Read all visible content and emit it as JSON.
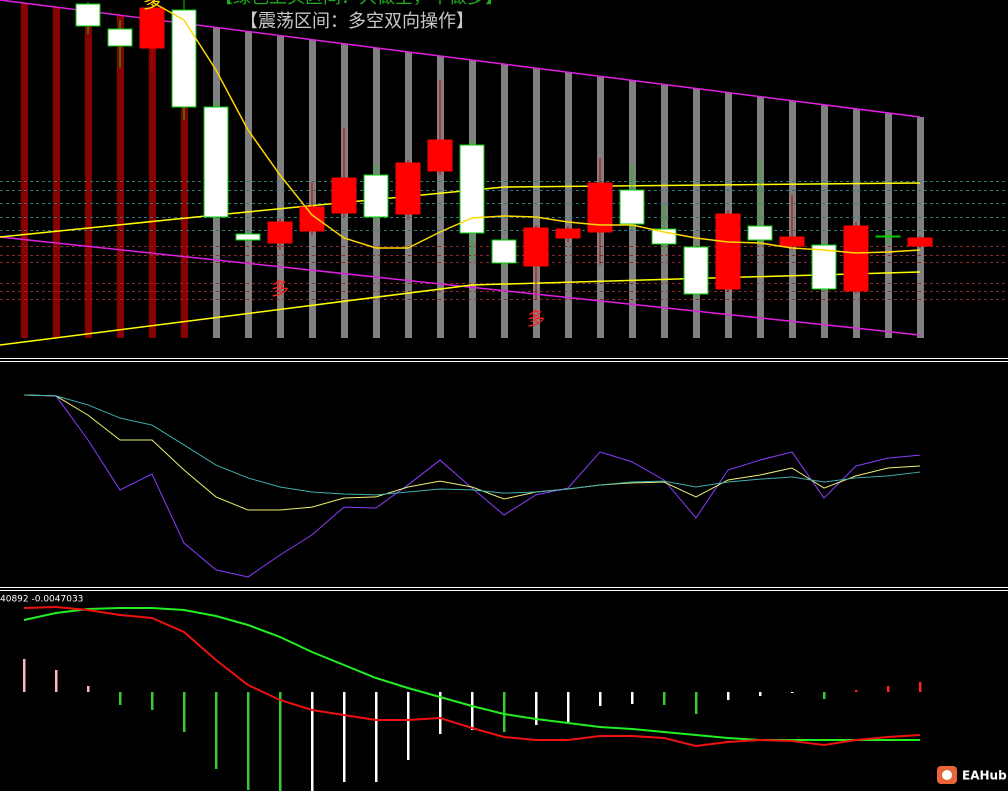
{
  "chart_data": [
    {
      "type": "candlestick",
      "title": "【绿色上头区间：只做空，不做多】",
      "subtitle": "【震荡区间：多空双向操作】",
      "annotations": [
        "多",
        "多",
        "多"
      ],
      "ylim": [
        0,
        360
      ],
      "up_color": "#ffffff",
      "down_color": "#ff0000",
      "wick_color": "#00cc00",
      "open": [
        null,
        null,
        334,
        314,
        352,
        253,
        143,
        120,
        138,
        153,
        182,
        143,
        197,
        220,
        127,
        97,
        132,
        131,
        177,
        136,
        116,
        66,
        146,
        120,
        123,
        71,
        134,
        123,
        122
      ],
      "high": [
        null,
        null,
        358,
        340,
        360,
        360,
        258,
        128,
        142,
        178,
        232,
        196,
        200,
        280,
        220,
        122,
        135,
        134,
        202,
        195,
        155,
        116,
        150,
        200,
        165,
        118,
        138,
        130,
        124
      ],
      "low": [
        null,
        null,
        326,
        292,
        290,
        240,
        140,
        118,
        110,
        125,
        143,
        138,
        140,
        185,
        100,
        92,
        60,
        118,
        95,
        130,
        110,
        62,
        68,
        115,
        110,
        68,
        66,
        116,
        112
      ],
      "close": [
        null,
        null,
        356,
        331,
        312,
        350,
        253,
        126,
        117,
        129,
        147,
        185,
        146,
        189,
        215,
        120,
        94,
        122,
        128,
        170,
        131,
        113,
        71,
        134,
        114,
        115,
        69,
        124,
        114
      ],
      "overlays": [
        {
          "color": "#ffd700",
          "values": [
            null,
            null,
            null,
            null,
            358,
            340,
            290,
            230,
            185,
            145,
            122,
            112,
            112,
            128,
            142,
            144,
            143,
            138,
            135,
            135,
            128,
            122,
            118,
            117,
            112,
            110,
            107,
            108,
            110
          ]
        }
      ],
      "channels": [
        {
          "color": "#e020e0",
          "x": [
            -0.75,
            28
          ],
          "values": [
            360,
            243
          ]
        },
        {
          "color": "#e020e0",
          "x": [
            -0.75,
            28
          ],
          "values": [
            123,
            25
          ]
        },
        {
          "color": "#ffff00",
          "x": [
            -0.75,
            14,
            28
          ],
          "values": [
            15,
            75,
            88
          ]
        },
        {
          "color": "#ffff00",
          "x": [
            -0.75,
            6,
            15,
            28
          ],
          "values": [
            123,
            145,
            173,
            177
          ]
        }
      ]
    },
    {
      "type": "line",
      "ylim": [
        0,
        100
      ],
      "series": [
        {
          "color": "#8a3cff",
          "values": [
            85.4,
            85,
            65.5,
            43.4,
            50.4,
            19.9,
            8,
            4.9,
            14.6,
            23.5,
            35.8,
            35.4,
            45.6,
            56.6,
            44.2,
            32.3,
            41.2,
            44.2,
            60.2,
            55.8,
            47.8,
            31,
            52.2,
            56.6,
            60.2,
            39.8,
            54,
            57.5,
            58.8
          ]
        },
        {
          "color": "#f0f070",
          "values": [
            85.4,
            85,
            76.5,
            65.5,
            65.5,
            52.2,
            40.3,
            34.5,
            34.5,
            35.8,
            39.8,
            40.3,
            44.7,
            47.3,
            44.7,
            39.4,
            42.5,
            43.8,
            45.6,
            46.5,
            46.9,
            40.3,
            47.8,
            50,
            53.1,
            44.2,
            49.6,
            53.1,
            54
          ]
        },
        {
          "color": "#40b0b0",
          "values": [
            85.4,
            85,
            81,
            75.2,
            72.1,
            63.3,
            54.4,
            48.7,
            44.7,
            42.5,
            41.6,
            41.2,
            42.5,
            43.8,
            43.4,
            42,
            42.5,
            43.8,
            45.6,
            46.9,
            47.3,
            44.7,
            46.9,
            48.2,
            49.1,
            46.9,
            48.7,
            49.6,
            51.3
          ]
        }
      ]
    },
    {
      "type": "bar",
      "label": "40892 -0.0047033",
      "ylim": [
        -0.005,
        0.005
      ],
      "values": [
        0.00165,
        0.0011,
        0.0003,
        -0.00065,
        -0.0009,
        -0.002,
        -0.00385,
        -0.0049,
        -0.005,
        -0.005,
        -0.0045,
        -0.0045,
        -0.0034,
        -0.0021,
        -0.0019,
        -0.002,
        -0.00165,
        -0.0015,
        -0.0007,
        -0.0006,
        -0.00065,
        -0.0011,
        -0.0004,
        -0.0002,
        -5e-05,
        -0.00035,
        0.0001,
        0.0003,
        0.0005
      ],
      "bar_colors": [
        "#ffb6c1",
        "#ffb6c1",
        "#ffb6c1",
        "#33cc33",
        "#33cc33",
        "#33cc33",
        "#33cc33",
        "#33cc33",
        "#33cc33",
        "#ffffff",
        "#ffffff",
        "#ffffff",
        "#ffffff",
        "#ffffff",
        "#ffffff",
        "#33cc33",
        "#ffffff",
        "#ffffff",
        "#ffffff",
        "#ffffff",
        "#33cc33",
        "#33cc33",
        "#ffffff",
        "#ffffff",
        "#ffffff",
        "#33cc33",
        "#ff2020",
        "#ff2020",
        "#ff2020"
      ],
      "series": [
        {
          "color": "#22ee22",
          "values": [
            0.0036,
            0.00395,
            0.00415,
            0.0042,
            0.0042,
            0.0041,
            0.0038,
            0.00335,
            0.00275,
            0.002,
            0.00135,
            0.0007,
            0.0002,
            -0.00025,
            -0.0007,
            -0.0011,
            -0.00135,
            -0.00155,
            -0.00175,
            -0.00185,
            -0.002,
            -0.00215,
            -0.0023,
            -0.0024,
            -0.0024,
            -0.0024,
            -0.0024,
            -0.0024,
            -0.0024
          ]
        },
        {
          "color": "#ee1111",
          "values": [
            0.0042,
            0.00425,
            0.0041,
            0.00385,
            0.0037,
            0.003,
            0.0016,
            0.00035,
            -0.0004,
            -0.0009,
            -0.00115,
            -0.0014,
            -0.0014,
            -0.0013,
            -0.0018,
            -0.00225,
            -0.0024,
            -0.0024,
            -0.0022,
            -0.0022,
            -0.0023,
            -0.0027,
            -0.0025,
            -0.0024,
            -0.00245,
            -0.00265,
            -0.0024,
            -0.00225,
            -0.00215
          ]
        }
      ]
    }
  ],
  "watermark": "EAHub"
}
